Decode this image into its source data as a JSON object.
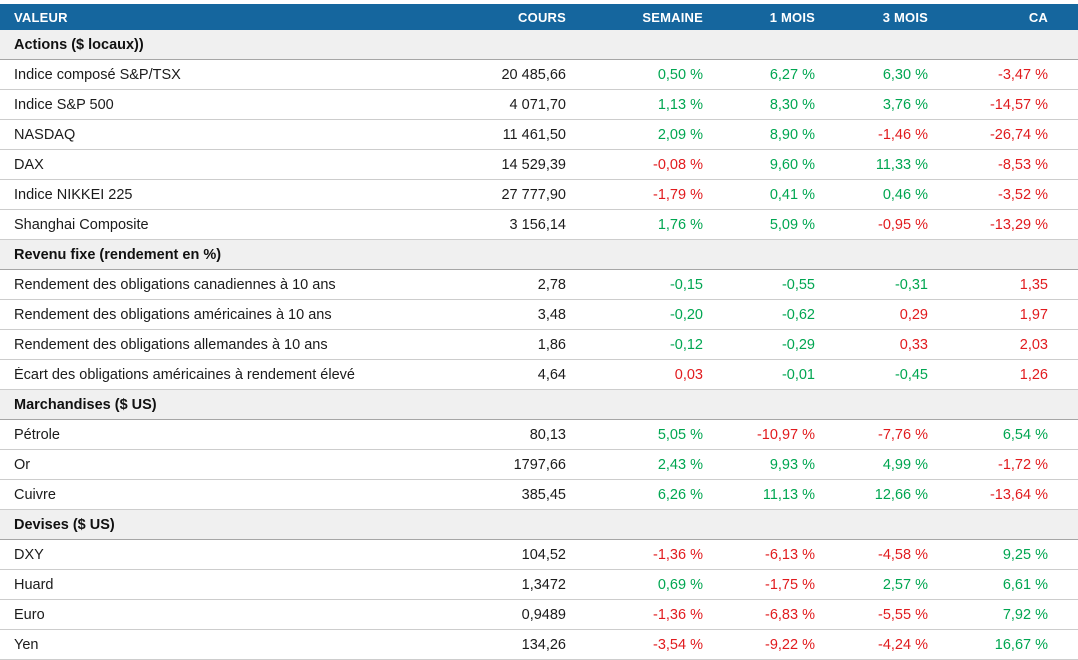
{
  "colors": {
    "header_bg": "#15669e",
    "header_text": "#ffffff",
    "positive": "#00a651",
    "negative": "#e11b1e",
    "section_bg": "#f0f0f0"
  },
  "chart_data": {
    "type": "table",
    "title": "",
    "columns": [
      "VALEUR",
      "COURS",
      "SEMAINE",
      "1 MOIS",
      "3 MOIS",
      "CA"
    ],
    "sections": [
      {
        "title": "Actions ($ locaux))",
        "rows": [
          {
            "label": "Indice composé S&P/TSX",
            "cours": "20 485,66",
            "changes": [
              {
                "t": "0,50 %",
                "c": "pos"
              },
              {
                "t": "6,27 %",
                "c": "pos"
              },
              {
                "t": "6,30 %",
                "c": "pos"
              },
              {
                "t": "-3,47 %",
                "c": "neg"
              }
            ]
          },
          {
            "label": "Indice S&P 500",
            "cours": "4 071,70",
            "changes": [
              {
                "t": "1,13 %",
                "c": "pos"
              },
              {
                "t": "8,30 %",
                "c": "pos"
              },
              {
                "t": "3,76 %",
                "c": "pos"
              },
              {
                "t": "-14,57 %",
                "c": "neg"
              }
            ]
          },
          {
            "label": "NASDAQ",
            "cours": "11 461,50",
            "changes": [
              {
                "t": "2,09 %",
                "c": "pos"
              },
              {
                "t": "8,90 %",
                "c": "pos"
              },
              {
                "t": "-1,46 %",
                "c": "neg"
              },
              {
                "t": "-26,74 %",
                "c": "neg"
              }
            ]
          },
          {
            "label": "DAX",
            "cours": "14 529,39",
            "changes": [
              {
                "t": "-0,08 %",
                "c": "neg"
              },
              {
                "t": "9,60 %",
                "c": "pos"
              },
              {
                "t": "11,33 %",
                "c": "pos"
              },
              {
                "t": "-8,53 %",
                "c": "neg"
              }
            ]
          },
          {
            "label": "Indice NIKKEI 225",
            "cours": "27 777,90",
            "changes": [
              {
                "t": "-1,79 %",
                "c": "neg"
              },
              {
                "t": "0,41 %",
                "c": "pos"
              },
              {
                "t": "0,46 %",
                "c": "pos"
              },
              {
                "t": "-3,52 %",
                "c": "neg"
              }
            ]
          },
          {
            "label": "Shanghai Composite",
            "cours": "3 156,14",
            "changes": [
              {
                "t": "1,76 %",
                "c": "pos"
              },
              {
                "t": "5,09 %",
                "c": "pos"
              },
              {
                "t": "-0,95 %",
                "c": "neg"
              },
              {
                "t": "-13,29 %",
                "c": "neg"
              }
            ]
          }
        ]
      },
      {
        "title": "Revenu fixe (rendement en %)",
        "rows": [
          {
            "label": "Rendement des obligations canadiennes à 10 ans",
            "cours": "2,78",
            "changes": [
              {
                "t": "-0,15",
                "c": "pos"
              },
              {
                "t": "-0,55",
                "c": "pos"
              },
              {
                "t": "-0,31",
                "c": "pos"
              },
              {
                "t": "1,35",
                "c": "neg"
              }
            ]
          },
          {
            "label": "Rendement des obligations américaines à 10 ans",
            "cours": "3,48",
            "changes": [
              {
                "t": "-0,20",
                "c": "pos"
              },
              {
                "t": "-0,62",
                "c": "pos"
              },
              {
                "t": "0,29",
                "c": "neg"
              },
              {
                "t": "1,97",
                "c": "neg"
              }
            ]
          },
          {
            "label": "Rendement des obligations allemandes à 10 ans",
            "cours": "1,86",
            "changes": [
              {
                "t": "-0,12",
                "c": "pos"
              },
              {
                "t": "-0,29",
                "c": "pos"
              },
              {
                "t": "0,33",
                "c": "neg"
              },
              {
                "t": "2,03",
                "c": "neg"
              }
            ]
          },
          {
            "label": "Écart des obligations américaines à rendement élevé",
            "cours": "4,64",
            "changes": [
              {
                "t": "0,03",
                "c": "neg"
              },
              {
                "t": "-0,01",
                "c": "pos"
              },
              {
                "t": "-0,45",
                "c": "pos"
              },
              {
                "t": "1,26",
                "c": "neg"
              }
            ]
          }
        ]
      },
      {
        "title": "Marchandises ($ US)",
        "rows": [
          {
            "label": "Pétrole",
            "cours": "80,13",
            "changes": [
              {
                "t": "5,05 %",
                "c": "pos"
              },
              {
                "t": "-10,97 %",
                "c": "neg"
              },
              {
                "t": "-7,76 %",
                "c": "neg"
              },
              {
                "t": "6,54 %",
                "c": "pos"
              }
            ]
          },
          {
            "label": "Or",
            "cours": "1797,66",
            "changes": [
              {
                "t": "2,43 %",
                "c": "pos"
              },
              {
                "t": "9,93 %",
                "c": "pos"
              },
              {
                "t": "4,99 %",
                "c": "pos"
              },
              {
                "t": "-1,72 %",
                "c": "neg"
              }
            ]
          },
          {
            "label": "Cuivre",
            "cours": "385,45",
            "changes": [
              {
                "t": "6,26 %",
                "c": "pos"
              },
              {
                "t": "11,13 %",
                "c": "pos"
              },
              {
                "t": "12,66 %",
                "c": "pos"
              },
              {
                "t": "-13,64 %",
                "c": "neg"
              }
            ]
          }
        ]
      },
      {
        "title": "Devises ($ US)",
        "rows": [
          {
            "label": "DXY",
            "cours": "104,52",
            "changes": [
              {
                "t": "-1,36 %",
                "c": "neg"
              },
              {
                "t": "-6,13 %",
                "c": "neg"
              },
              {
                "t": "-4,58 %",
                "c": "neg"
              },
              {
                "t": "9,25 %",
                "c": "pos"
              }
            ]
          },
          {
            "label": "Huard",
            "cours": "1,3472",
            "changes": [
              {
                "t": "0,69 %",
                "c": "pos"
              },
              {
                "t": "-1,75 %",
                "c": "neg"
              },
              {
                "t": "2,57 %",
                "c": "pos"
              },
              {
                "t": "6,61 %",
                "c": "pos"
              }
            ]
          },
          {
            "label": "Euro",
            "cours": "0,9489",
            "changes": [
              {
                "t": "-1,36 %",
                "c": "neg"
              },
              {
                "t": "-6,83 %",
                "c": "neg"
              },
              {
                "t": "-5,55 %",
                "c": "neg"
              },
              {
                "t": "7,92 %",
                "c": "pos"
              }
            ]
          },
          {
            "label": "Yen",
            "cours": "134,26",
            "changes": [
              {
                "t": "-3,54 %",
                "c": "neg"
              },
              {
                "t": "-9,22 %",
                "c": "neg"
              },
              {
                "t": "-4,24 %",
                "c": "neg"
              },
              {
                "t": "16,67 %",
                "c": "pos"
              }
            ]
          }
        ]
      }
    ]
  }
}
